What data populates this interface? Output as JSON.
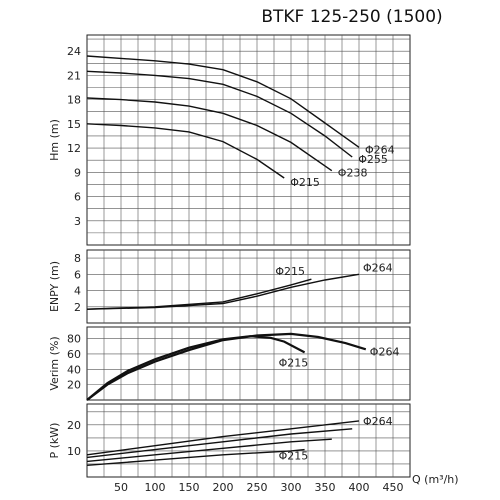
{
  "title": "BTKF 125-250 (1500)",
  "chart_data": [
    {
      "type": "line",
      "panel": "head",
      "ylabel": "Hm (m)",
      "ylim": [
        0,
        26
      ],
      "yticks": [
        3,
        6,
        9,
        12,
        15,
        18,
        21,
        24
      ],
      "xlim": [
        0,
        480
      ],
      "series": [
        {
          "name": "Φ264",
          "x": [
            0,
            50,
            100,
            150,
            200,
            250,
            300,
            350,
            400
          ],
          "values": [
            23.4,
            23.1,
            22.8,
            22.4,
            21.7,
            20.2,
            18.1,
            15.1,
            12.1
          ]
        },
        {
          "name": "Φ255",
          "x": [
            0,
            50,
            100,
            150,
            200,
            250,
            300,
            350,
            390
          ],
          "values": [
            21.5,
            21.3,
            21.0,
            20.6,
            19.9,
            18.4,
            16.3,
            13.5,
            10.9
          ]
        },
        {
          "name": "Φ238",
          "x": [
            0,
            50,
            100,
            150,
            200,
            250,
            300,
            360
          ],
          "values": [
            18.2,
            18.0,
            17.7,
            17.2,
            16.3,
            14.8,
            12.7,
            9.2
          ]
        },
        {
          "name": "Φ215",
          "x": [
            0,
            50,
            100,
            150,
            200,
            250,
            290
          ],
          "values": [
            15.0,
            14.8,
            14.5,
            14.0,
            12.8,
            10.6,
            8.3
          ]
        }
      ],
      "labels": [
        "Φ264",
        "Φ255",
        "Φ238",
        "Φ215"
      ]
    },
    {
      "type": "line",
      "panel": "npsh",
      "ylabel": "ENPY (m)",
      "ylim": [
        0,
        9
      ],
      "yticks": [
        2,
        4,
        6,
        8
      ],
      "xlim": [
        0,
        480
      ],
      "series": [
        {
          "name": "Φ264",
          "x": [
            0,
            100,
            200,
            250,
            300,
            350,
            400
          ],
          "values": [
            1.7,
            1.9,
            2.4,
            3.3,
            4.4,
            5.3,
            6.0
          ]
        },
        {
          "name": "Φ215",
          "x": [
            0,
            100,
            200,
            250,
            300,
            330
          ],
          "values": [
            1.7,
            2.0,
            2.6,
            3.6,
            4.7,
            5.4
          ]
        }
      ],
      "labels": [
        "Φ264",
        "Φ215"
      ]
    },
    {
      "type": "line",
      "panel": "efficiency",
      "ylabel": "Verim (%)",
      "ylim": [
        0,
        95
      ],
      "yticks": [
        20,
        40,
        60,
        80
      ],
      "xlim": [
        0,
        480
      ],
      "series": [
        {
          "name": "Φ264",
          "x": [
            0,
            30,
            60,
            100,
            150,
            200,
            250,
            300,
            340,
            380,
            410
          ],
          "values": [
            0,
            20,
            35,
            50,
            65,
            78,
            84,
            86,
            82,
            74,
            66
          ]
        },
        {
          "name": "Φ215",
          "x": [
            0,
            30,
            60,
            100,
            150,
            200,
            240,
            270,
            290,
            320
          ],
          "values": [
            0,
            22,
            38,
            53,
            68,
            79,
            83,
            81,
            76,
            62
          ]
        }
      ],
      "labels": [
        "Φ264",
        "Φ215"
      ]
    },
    {
      "type": "line",
      "panel": "power",
      "ylabel": "P (kW)",
      "ylim": [
        0,
        28
      ],
      "yticks": [
        10,
        20
      ],
      "xticks": [
        50,
        100,
        150,
        200,
        250,
        300,
        350,
        400,
        450
      ],
      "xlabel": "Q (m³/h)",
      "xlim": [
        0,
        480
      ],
      "series": [
        {
          "name": "Φ264",
          "x": [
            0,
            100,
            200,
            300,
            400
          ],
          "values": [
            8.5,
            12.0,
            15.5,
            18.5,
            21.5
          ]
        },
        {
          "name": "Φ255",
          "x": [
            0,
            100,
            200,
            300,
            390
          ],
          "values": [
            7.5,
            10.5,
            13.5,
            16.5,
            18.5
          ]
        },
        {
          "name": "Φ238",
          "x": [
            0,
            100,
            200,
            300,
            360
          ],
          "values": [
            6.0,
            8.5,
            11.0,
            13.5,
            14.5
          ]
        },
        {
          "name": "Φ215",
          "x": [
            0,
            100,
            200,
            300,
            320
          ],
          "values": [
            4.5,
            6.5,
            8.5,
            10.0,
            10.5
          ]
        }
      ],
      "labels": [
        "Φ264",
        "Φ215"
      ]
    }
  ]
}
